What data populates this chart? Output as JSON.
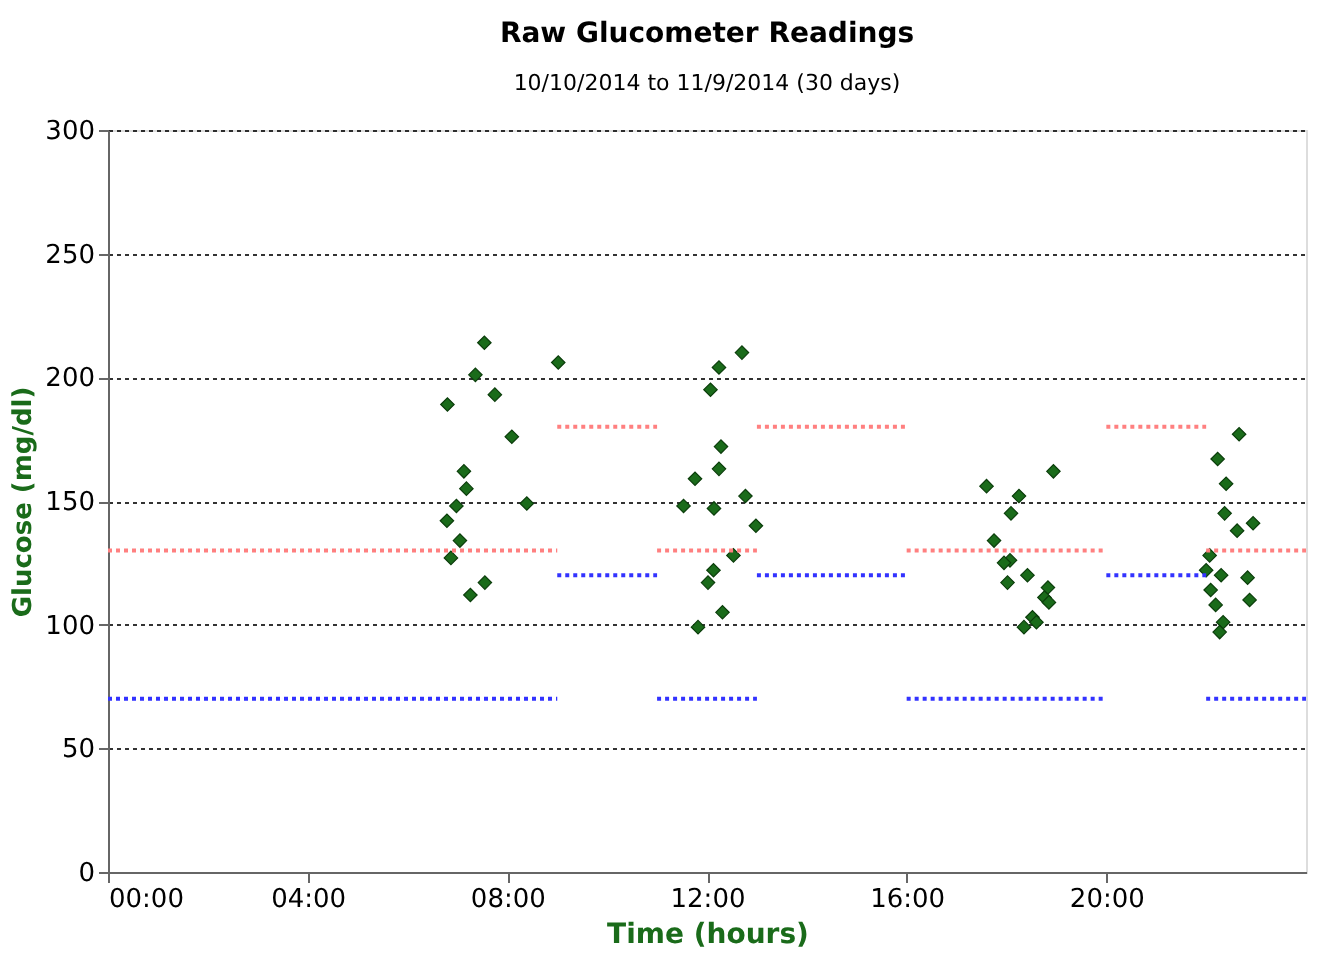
{
  "chart_data": {
    "type": "scatter",
    "title": "Raw Glucometer Readings",
    "subtitle": "10/10/2014 to 11/9/2014 (30 days)",
    "xlabel": "Time (hours)",
    "ylabel": "Glucose (mg/dl)",
    "xlim": [
      0,
      24
    ],
    "ylim": [
      0,
      300
    ],
    "xticks": [
      {
        "value": 0,
        "label": "00:00"
      },
      {
        "value": 4,
        "label": "04:00"
      },
      {
        "value": 8,
        "label": "08:00"
      },
      {
        "value": 12,
        "label": "12:00"
      },
      {
        "value": 16,
        "label": "16:00"
      },
      {
        "value": 20,
        "label": "20:00"
      }
    ],
    "yticks": [
      0,
      50,
      100,
      150,
      200,
      250,
      300
    ],
    "grid": "y",
    "marker": "diamond",
    "series": [
      {
        "type": "scatter",
        "color": "#1a6b1a",
        "x": [
          7.54,
          9.02,
          7.36,
          6.8,
          7.75,
          8.09,
          7.13,
          7.18,
          6.98,
          8.39,
          6.79,
          7.05,
          6.87,
          7.55,
          7.26,
          12.7,
          12.24,
          12.07,
          12.28,
          12.24,
          11.76,
          12.77,
          11.53,
          12.14,
          12.98,
          12.53,
          12.13,
          12.02,
          12.31,
          11.82,
          18.94,
          17.6,
          18.25,
          18.09,
          17.75,
          18.07,
          17.95,
          18.42,
          18.02,
          18.83,
          18.76,
          18.85,
          18.52,
          18.6,
          18.35,
          22.66,
          22.23,
          22.4,
          22.37,
          22.94,
          22.62,
          22.07,
          22.0,
          22.3,
          22.83,
          22.09,
          22.87,
          22.19,
          22.34,
          22.27
        ],
        "values": [
          214,
          206,
          201,
          189,
          193,
          176,
          162,
          155,
          148,
          149,
          142,
          134,
          127,
          117,
          112,
          210,
          204,
          195,
          172,
          163,
          159,
          152,
          148,
          147,
          140,
          128,
          122,
          117,
          105,
          99,
          162,
          156,
          152,
          145,
          134,
          126,
          125,
          120,
          117,
          115,
          111,
          109,
          103,
          101,
          99,
          177,
          167,
          157,
          145,
          141,
          138,
          128,
          122,
          120,
          119,
          114,
          110,
          108,
          101,
          97
        ]
      },
      {
        "type": "line",
        "line_style": "dotted",
        "marker": "none",
        "color": "#ff8080",
        "x": [
          0,
          9,
          9,
          11,
          11,
          13,
          13,
          16,
          16,
          20,
          20,
          22,
          22,
          24
        ],
        "values": [
          130,
          130,
          180,
          180,
          130,
          130,
          180,
          180,
          130,
          130,
          180,
          180,
          130,
          130
        ]
      },
      {
        "type": "line",
        "line_style": "dotted",
        "marker": "none",
        "color": "#3333ff",
        "x": [
          0,
          9,
          9,
          11,
          11,
          13,
          13,
          16,
          16,
          20,
          20,
          22,
          22,
          24
        ],
        "values": [
          70,
          70,
          120,
          120,
          70,
          70,
          120,
          120,
          70,
          70,
          120,
          120,
          70,
          70
        ]
      }
    ]
  }
}
